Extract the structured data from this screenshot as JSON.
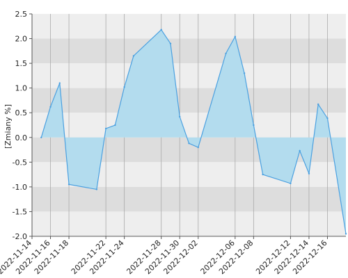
{
  "chart_data": {
    "type": "area",
    "ylabel": "[Zmiany %]",
    "xlabel": "",
    "title": "",
    "ylim": [
      -2.0,
      2.5
    ],
    "yticks": [
      "2.5",
      "2.0",
      "1.5",
      "1.0",
      "0.5",
      "0.0",
      "-0.5",
      "-1.0",
      "-1.5",
      "-2.0"
    ],
    "xlim": [
      "2022-11-14",
      "2022-12-18"
    ],
    "xticks": [
      "2022-11-14",
      "2022-11-16",
      "2022-11-18",
      "2022-11-22",
      "2022-11-24",
      "2022-11-28",
      "2022-11-30",
      "2022-12-02",
      "2022-12-06",
      "2022-12-08",
      "2022-12-12",
      "2022-12-14",
      "2022-12-16"
    ],
    "grid": true,
    "legend": "none",
    "colors": {
      "fill": "#b3dcee",
      "line": "#4aa0e0",
      "band_light": "#eeeeee",
      "band_dark": "#dddddd",
      "vgrid": "#aaaaaa",
      "axis": "#555555"
    },
    "points": [
      {
        "x": "2022-11-15",
        "y": 0.0
      },
      {
        "x": "2022-11-16",
        "y": 0.62
      },
      {
        "x": "2022-11-17",
        "y": 1.1
      },
      {
        "x": "2022-11-18",
        "y": -0.95
      },
      {
        "x": "2022-11-21",
        "y": -1.05
      },
      {
        "x": "2022-11-22",
        "y": 0.18
      },
      {
        "x": "2022-11-23",
        "y": 0.25
      },
      {
        "x": "2022-11-24",
        "y": 1.02
      },
      {
        "x": "2022-11-25",
        "y": 1.65
      },
      {
        "x": "2022-11-28",
        "y": 2.18
      },
      {
        "x": "2022-11-29",
        "y": 1.9
      },
      {
        "x": "2022-11-30",
        "y": 0.42
      },
      {
        "x": "2022-12-01",
        "y": -0.12
      },
      {
        "x": "2022-12-02",
        "y": -0.2
      },
      {
        "x": "2022-12-05",
        "y": 1.7
      },
      {
        "x": "2022-12-06",
        "y": 2.04
      },
      {
        "x": "2022-12-07",
        "y": 1.3
      },
      {
        "x": "2022-12-08",
        "y": 0.25
      },
      {
        "x": "2022-12-09",
        "y": -0.75
      },
      {
        "x": "2022-12-12",
        "y": -0.93
      },
      {
        "x": "2022-12-13",
        "y": -0.27
      },
      {
        "x": "2022-12-14",
        "y": -0.73
      },
      {
        "x": "2022-12-15",
        "y": 0.67
      },
      {
        "x": "2022-12-16",
        "y": 0.39
      },
      {
        "x": "2022-12-18",
        "y": -1.95
      }
    ]
  }
}
